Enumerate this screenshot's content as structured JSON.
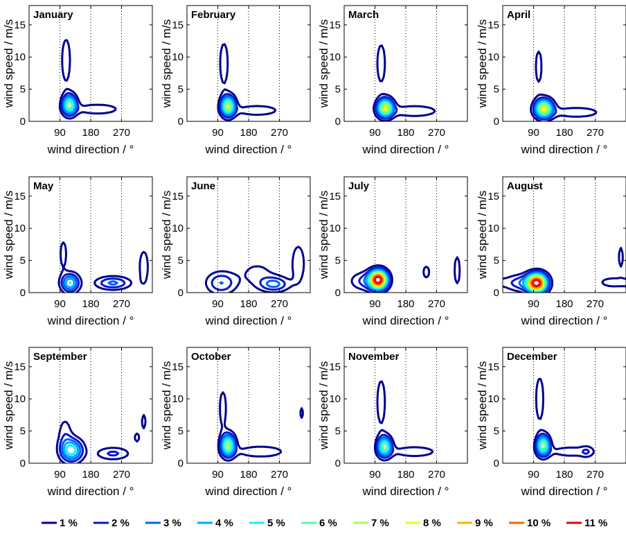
{
  "chart_data": {
    "type": "contour",
    "layout": "small-multiples-3x4",
    "xlabel": "wind direction / °",
    "ylabel": "wind speed / m/s",
    "xlim": [
      0,
      360
    ],
    "ylim": [
      0,
      18
    ],
    "xticks": [
      90,
      180,
      270
    ],
    "yticks": [
      0,
      5,
      10,
      15
    ],
    "xgrid": "dotted",
    "ygrid": "none",
    "legend": {
      "placement": "bottom",
      "levels": [
        {
          "label": "1 %",
          "value": 1,
          "color": "#000090"
        },
        {
          "label": "2 %",
          "value": 2,
          "color": "#0018c8"
        },
        {
          "label": "3 %",
          "value": 3,
          "color": "#0060ff"
        },
        {
          "label": "4 %",
          "value": 4,
          "color": "#00a8ff"
        },
        {
          "label": "5 %",
          "value": 5,
          "color": "#10f0ff"
        },
        {
          "label": "6 %",
          "value": 6,
          "color": "#50ffa8"
        },
        {
          "label": "7 %",
          "value": 7,
          "color": "#a0ff60"
        },
        {
          "label": "8 %",
          "value": 8,
          "color": "#f0ff10"
        },
        {
          "label": "9 %",
          "value": 9,
          "color": "#ffb000"
        },
        {
          "label": "10 %",
          "value": 10,
          "color": "#ff6000"
        },
        {
          "label": "11 %",
          "value": 11,
          "color": "#e80000"
        }
      ]
    },
    "panels": [
      {
        "title": "January",
        "peaks": [
          {
            "dir": 118,
            "speed": 2.6,
            "sd": 14,
            "ss": 1.1,
            "amp": 6.5
          },
          {
            "dir": 108,
            "speed": 9.5,
            "sd": 10,
            "ss": 2.8,
            "amp": 1.9
          },
          {
            "dir": 200,
            "speed": 1.9,
            "sd": 55,
            "ss": 0.7,
            "amp": 1.6
          }
        ]
      },
      {
        "title": "February",
        "peaks": [
          {
            "dir": 120,
            "speed": 2.4,
            "sd": 14,
            "ss": 1.1,
            "amp": 7.2
          },
          {
            "dir": 108,
            "speed": 9.0,
            "sd": 10,
            "ss": 2.8,
            "amp": 1.8
          },
          {
            "dir": 205,
            "speed": 1.7,
            "sd": 55,
            "ss": 0.7,
            "amp": 1.6
          }
        ]
      },
      {
        "title": "March",
        "peaks": [
          {
            "dir": 120,
            "speed": 2.1,
            "sd": 16,
            "ss": 1.0,
            "amp": 7.8
          },
          {
            "dir": 108,
            "speed": 9.0,
            "sd": 10,
            "ss": 2.6,
            "amp": 1.8
          },
          {
            "dir": 205,
            "speed": 1.6,
            "sd": 55,
            "ss": 0.7,
            "amp": 1.8
          }
        ]
      },
      {
        "title": "April",
        "peaks": [
          {
            "dir": 120,
            "speed": 2.0,
            "sd": 18,
            "ss": 1.0,
            "amp": 8.0
          },
          {
            "dir": 105,
            "speed": 8.5,
            "sd": 9,
            "ss": 2.6,
            "amp": 1.5
          },
          {
            "dir": 215,
            "speed": 1.4,
            "sd": 60,
            "ss": 0.7,
            "amp": 1.6
          }
        ]
      },
      {
        "title": "May",
        "peaks": [
          {
            "dir": 120,
            "speed": 1.5,
            "sd": 18,
            "ss": 1.0,
            "amp": 5.0
          },
          {
            "dir": 100,
            "speed": 6.0,
            "sd": 9,
            "ss": 2.0,
            "amp": 1.5
          },
          {
            "dir": 245,
            "speed": 1.5,
            "sd": 35,
            "ss": 0.7,
            "amp": 3.2
          },
          {
            "dir": 335,
            "speed": 4.0,
            "sd": 12,
            "ss": 2.4,
            "amp": 1.6
          }
        ]
      },
      {
        "title": "June",
        "peaks": [
          {
            "dir": 100,
            "speed": 1.5,
            "sd": 30,
            "ss": 1.2,
            "amp": 3.0
          },
          {
            "dir": 255,
            "speed": 1.3,
            "sd": 30,
            "ss": 0.8,
            "amp": 3.2
          },
          {
            "dir": 325,
            "speed": 4.5,
            "sd": 15,
            "ss": 2.4,
            "amp": 1.8
          },
          {
            "dir": 205,
            "speed": 3.0,
            "sd": 40,
            "ss": 1.5,
            "amp": 1.3
          }
        ]
      },
      {
        "title": "July",
        "peaks": [
          {
            "dir": 100,
            "speed": 2.0,
            "sd": 18,
            "ss": 1.0,
            "amp": 11.5
          },
          {
            "dir": 60,
            "speed": 1.8,
            "sd": 30,
            "ss": 1.0,
            "amp": 2.2
          },
          {
            "dir": 240,
            "speed": 3.2,
            "sd": 10,
            "ss": 1.0,
            "amp": 1.4
          },
          {
            "dir": 330,
            "speed": 3.5,
            "sd": 8,
            "ss": 2.2,
            "amp": 1.5
          }
        ]
      },
      {
        "title": "August",
        "peaks": [
          {
            "dir": 100,
            "speed": 1.5,
            "sd": 20,
            "ss": 1.0,
            "amp": 11.2
          },
          {
            "dir": 55,
            "speed": 1.5,
            "sd": 35,
            "ss": 0.9,
            "amp": 2.6
          },
          {
            "dir": 345,
            "speed": 5.5,
            "sd": 6,
            "ss": 1.6,
            "amp": 1.5
          },
          {
            "dir": 320,
            "speed": 1.6,
            "sd": 30,
            "ss": 0.6,
            "amp": 1.6
          }
        ]
      },
      {
        "title": "September",
        "peaks": [
          {
            "dir": 125,
            "speed": 2.0,
            "sd": 22,
            "ss": 1.2,
            "amp": 5.5
          },
          {
            "dir": 105,
            "speed": 4.5,
            "sd": 15,
            "ss": 2.0,
            "amp": 1.6
          },
          {
            "dir": 245,
            "speed": 1.5,
            "sd": 35,
            "ss": 0.7,
            "amp": 2.2
          },
          {
            "dir": 335,
            "speed": 6.5,
            "sd": 6,
            "ss": 1.2,
            "amp": 1.4
          },
          {
            "dir": 315,
            "speed": 4.0,
            "sd": 10,
            "ss": 1.0,
            "amp": 1.2
          }
        ]
      },
      {
        "title": "October",
        "peaks": [
          {
            "dir": 120,
            "speed": 2.8,
            "sd": 14,
            "ss": 1.2,
            "amp": 7.0
          },
          {
            "dir": 105,
            "speed": 8.5,
            "sd": 9,
            "ss": 2.6,
            "amp": 1.6
          },
          {
            "dir": 215,
            "speed": 1.8,
            "sd": 55,
            "ss": 0.7,
            "amp": 1.8
          },
          {
            "dir": 335,
            "speed": 7.8,
            "sd": 5,
            "ss": 0.9,
            "amp": 1.4
          }
        ]
      },
      {
        "title": "November",
        "peaks": [
          {
            "dir": 118,
            "speed": 2.6,
            "sd": 14,
            "ss": 1.1,
            "amp": 6.5
          },
          {
            "dir": 108,
            "speed": 9.5,
            "sd": 10,
            "ss": 3.0,
            "amp": 1.8
          },
          {
            "dir": 205,
            "speed": 1.8,
            "sd": 55,
            "ss": 0.7,
            "amp": 1.6
          }
        ]
      },
      {
        "title": "December",
        "peaks": [
          {
            "dir": 118,
            "speed": 2.8,
            "sd": 13,
            "ss": 1.1,
            "amp": 6.8
          },
          {
            "dir": 108,
            "speed": 10.0,
            "sd": 9,
            "ss": 2.8,
            "amp": 1.9
          },
          {
            "dir": 200,
            "speed": 1.8,
            "sd": 55,
            "ss": 0.7,
            "amp": 1.5
          },
          {
            "dir": 245,
            "speed": 1.8,
            "sd": 12,
            "ss": 0.6,
            "amp": 1.2
          }
        ]
      }
    ]
  }
}
